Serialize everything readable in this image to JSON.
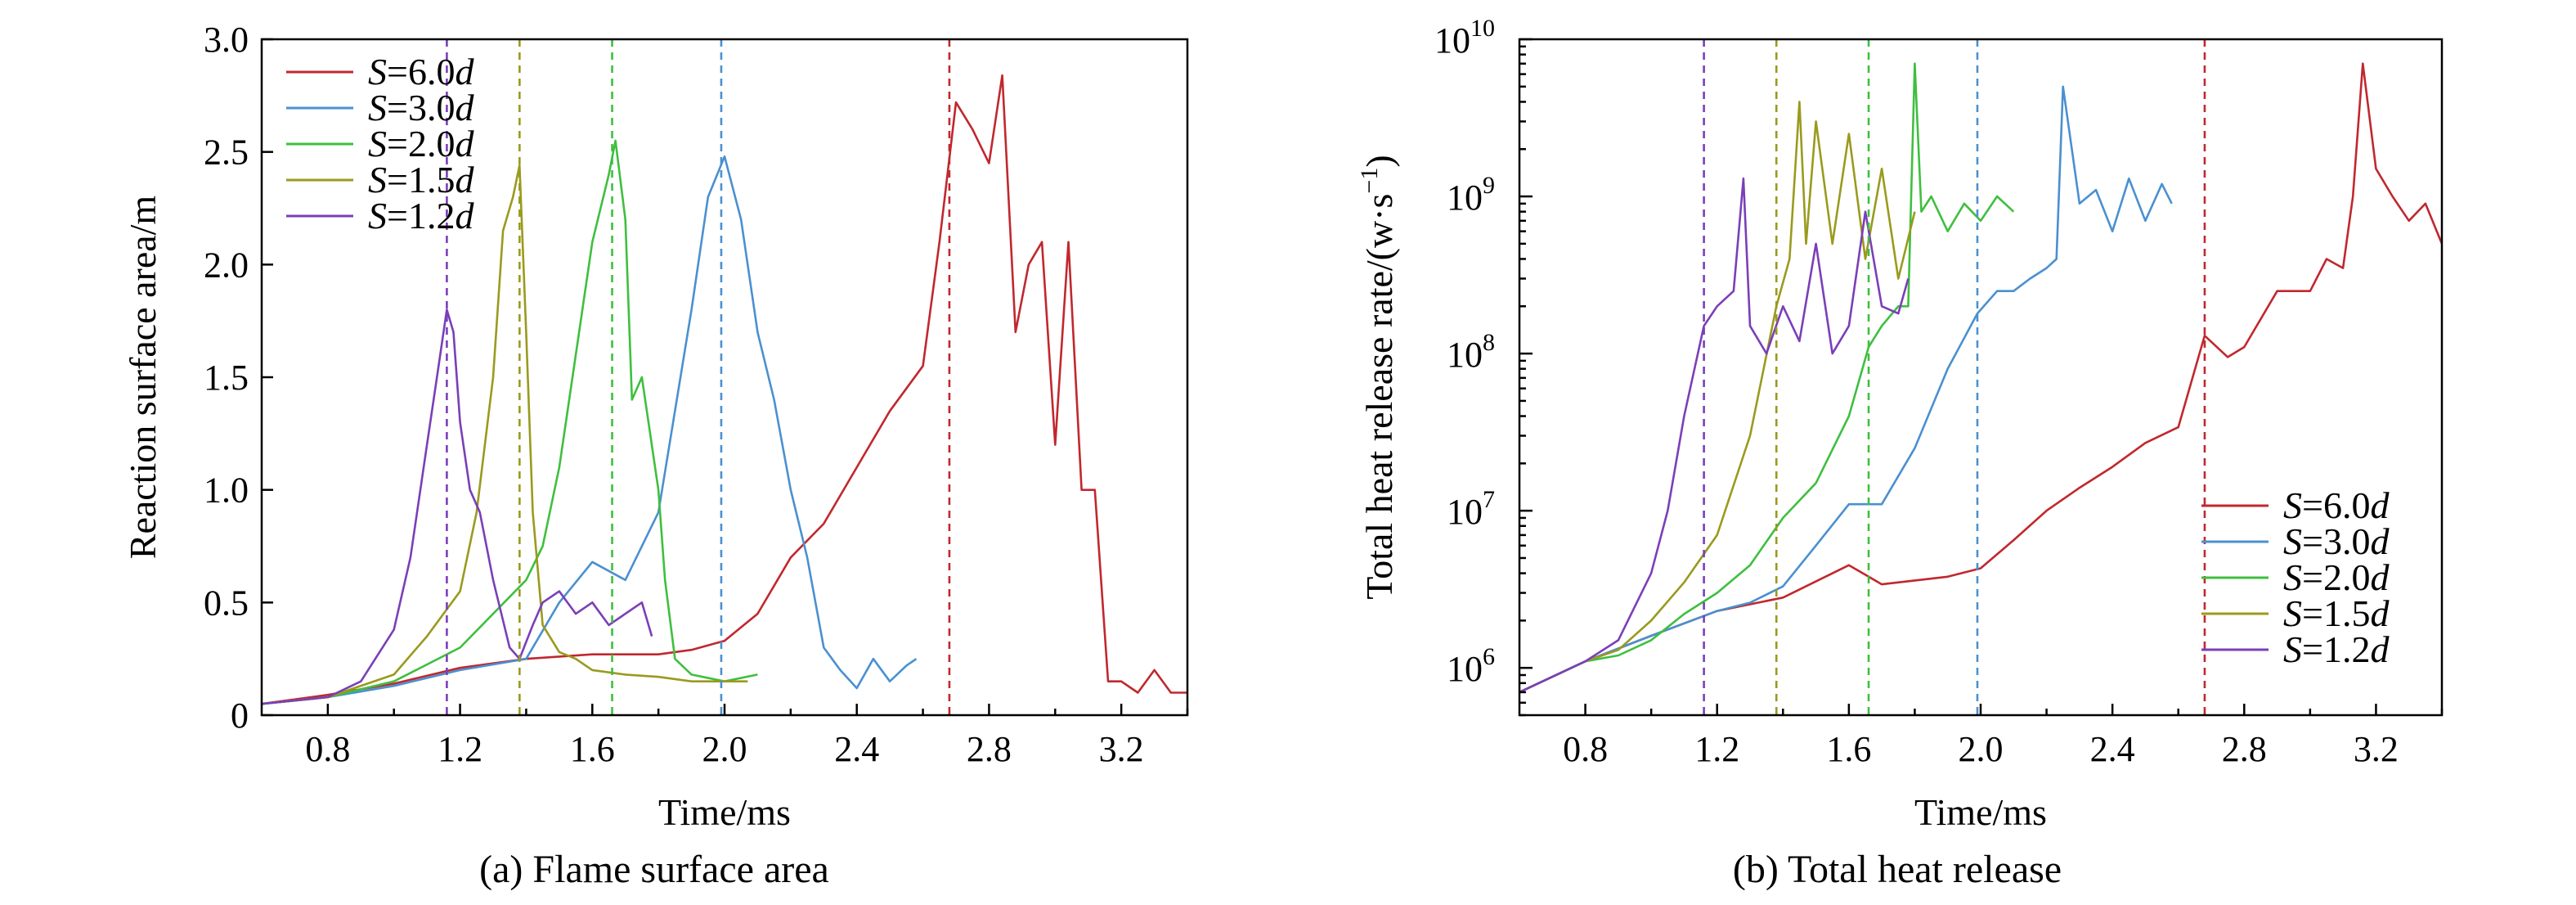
{
  "colors": {
    "S=6.0d": "#c0282e",
    "S=3.0d": "#4a90d0",
    "S=2.0d": "#3fbf3f",
    "S=1.5d": "#9a9a1e",
    "S=1.2d": "#7a3fb8"
  },
  "chart_data": [
    {
      "type": "line",
      "caption": "(a) Flame surface area",
      "xlabel": "Time/ms",
      "ylabel": "Reaction surface area/m",
      "xlim": [
        0.6,
        3.4
      ],
      "ylim": [
        0,
        3.0
      ],
      "xticks": [
        "0.8",
        "1.2",
        "1.6",
        "2.0",
        "2.4",
        "2.8",
        "3.2"
      ],
      "yticks": [
        "0",
        "0.5",
        "1.0",
        "1.5",
        "2.0",
        "2.5",
        "3.0"
      ],
      "legend_position": "top-left",
      "legend": [
        {
          "prefix": "S",
          "suffix": "=6.0",
          "unit": "d"
        },
        {
          "prefix": "S",
          "suffix": "=3.0",
          "unit": "d"
        },
        {
          "prefix": "S",
          "suffix": "=2.0",
          "unit": "d"
        },
        {
          "prefix": "S",
          "suffix": "=1.5",
          "unit": "d"
        },
        {
          "prefix": "S",
          "suffix": "=1.2",
          "unit": "d"
        }
      ],
      "markers": [
        {
          "series": "S=1.2d",
          "x": 1.16
        },
        {
          "series": "S=1.5d",
          "x": 1.38
        },
        {
          "series": "S=2.0d",
          "x": 1.66
        },
        {
          "series": "S=3.0d",
          "x": 1.99
        },
        {
          "series": "S=6.0d",
          "x": 2.68
        }
      ],
      "series": [
        {
          "name": "S=6.0d",
          "x": [
            0.6,
            0.8,
            1.0,
            1.2,
            1.4,
            1.6,
            1.8,
            1.9,
            2.0,
            2.1,
            2.2,
            2.3,
            2.4,
            2.5,
            2.6,
            2.65,
            2.7,
            2.75,
            2.8,
            2.84,
            2.88,
            2.92,
            2.96,
            3.0,
            3.04,
            3.08,
            3.12,
            3.16,
            3.2,
            3.25,
            3.3,
            3.35,
            3.4
          ],
          "y": [
            0.05,
            0.09,
            0.14,
            0.21,
            0.25,
            0.27,
            0.27,
            0.29,
            0.33,
            0.45,
            0.7,
            0.85,
            1.1,
            1.35,
            1.55,
            2.1,
            2.72,
            2.6,
            2.45,
            2.84,
            1.7,
            2.0,
            2.1,
            1.2,
            2.1,
            1.0,
            1.0,
            0.15,
            0.15,
            0.1,
            0.2,
            0.1,
            0.1
          ]
        },
        {
          "name": "S=3.0d",
          "x": [
            0.6,
            0.8,
            1.0,
            1.2,
            1.4,
            1.5,
            1.6,
            1.7,
            1.8,
            1.9,
            1.95,
            2.0,
            2.05,
            2.1,
            2.15,
            2.2,
            2.25,
            2.3,
            2.35,
            2.4,
            2.45,
            2.5,
            2.55,
            2.58
          ],
          "y": [
            0.05,
            0.08,
            0.13,
            0.2,
            0.25,
            0.5,
            0.68,
            0.6,
            0.9,
            1.8,
            2.3,
            2.48,
            2.2,
            1.7,
            1.4,
            1.0,
            0.7,
            0.3,
            0.2,
            0.12,
            0.25,
            0.15,
            0.22,
            0.25
          ]
        },
        {
          "name": "S=2.0d",
          "x": [
            0.6,
            0.8,
            1.0,
            1.2,
            1.4,
            1.45,
            1.5,
            1.55,
            1.6,
            1.65,
            1.67,
            1.7,
            1.72,
            1.75,
            1.8,
            1.82,
            1.85,
            1.9,
            2.0,
            2.1
          ],
          "y": [
            0.05,
            0.08,
            0.15,
            0.3,
            0.6,
            0.75,
            1.1,
            1.6,
            2.1,
            2.4,
            2.55,
            2.2,
            1.4,
            1.5,
            1.0,
            0.6,
            0.25,
            0.18,
            0.15,
            0.18
          ]
        },
        {
          "name": "S=1.5d",
          "x": [
            0.6,
            0.8,
            1.0,
            1.1,
            1.2,
            1.25,
            1.3,
            1.33,
            1.36,
            1.38,
            1.4,
            1.42,
            1.45,
            1.5,
            1.55,
            1.6,
            1.7,
            1.8,
            1.9,
            2.0,
            2.07
          ],
          "y": [
            0.05,
            0.08,
            0.18,
            0.35,
            0.55,
            0.9,
            1.5,
            2.15,
            2.3,
            2.44,
            1.7,
            0.9,
            0.4,
            0.28,
            0.25,
            0.2,
            0.18,
            0.17,
            0.15,
            0.15,
            0.15
          ]
        },
        {
          "name": "S=1.2d",
          "x": [
            0.6,
            0.8,
            0.9,
            1.0,
            1.05,
            1.1,
            1.13,
            1.16,
            1.18,
            1.2,
            1.23,
            1.26,
            1.3,
            1.35,
            1.38,
            1.42,
            1.45,
            1.5,
            1.55,
            1.6,
            1.65,
            1.7,
            1.75,
            1.78
          ],
          "y": [
            0.05,
            0.08,
            0.15,
            0.38,
            0.7,
            1.2,
            1.5,
            1.8,
            1.7,
            1.3,
            1.0,
            0.9,
            0.6,
            0.3,
            0.25,
            0.4,
            0.5,
            0.55,
            0.45,
            0.5,
            0.4,
            0.45,
            0.5,
            0.35
          ]
        }
      ]
    },
    {
      "type": "line",
      "caption": "(b) Total heat release",
      "xlabel": "Time/ms",
      "ylabel_text": "Total heat release rate/(w·s",
      "ylabel_sup": "−1",
      "ylabel_close": ")",
      "yscale": "log",
      "xlim": [
        0.6,
        3.4
      ],
      "ylim": [
        500000,
        10000000000
      ],
      "xticks": [
        "0.8",
        "1.2",
        "1.6",
        "2.0",
        "2.4",
        "2.8",
        "3.2"
      ],
      "yticks": [
        {
          "base": "10",
          "exp": "6"
        },
        {
          "base": "10",
          "exp": "7"
        },
        {
          "base": "10",
          "exp": "8"
        },
        {
          "base": "10",
          "exp": "9"
        },
        {
          "base": "10",
          "exp": "10"
        }
      ],
      "legend_position": "bottom-right",
      "legend": [
        {
          "prefix": "S",
          "suffix": "=6.0",
          "unit": "d"
        },
        {
          "prefix": "S",
          "suffix": "=3.0",
          "unit": "d"
        },
        {
          "prefix": "S",
          "suffix": "=2.0",
          "unit": "d"
        },
        {
          "prefix": "S",
          "suffix": "=1.5",
          "unit": "d"
        },
        {
          "prefix": "S",
          "suffix": "=1.2",
          "unit": "d"
        }
      ],
      "markers": [
        {
          "series": "S=1.2d",
          "x": 1.16
        },
        {
          "series": "S=1.5d",
          "x": 1.38
        },
        {
          "series": "S=2.0d",
          "x": 1.66
        },
        {
          "series": "S=3.0d",
          "x": 1.99
        },
        {
          "series": "S=6.0d",
          "x": 2.68
        }
      ],
      "series": [
        {
          "name": "S=6.0d",
          "x": [
            0.6,
            0.8,
            1.0,
            1.2,
            1.4,
            1.6,
            1.7,
            1.8,
            1.9,
            2.0,
            2.1,
            2.2,
            2.3,
            2.4,
            2.5,
            2.6,
            2.68,
            2.75,
            2.8,
            2.9,
            3.0,
            3.05,
            3.1,
            3.13,
            3.16,
            3.2,
            3.25,
            3.3,
            3.35,
            3.4
          ],
          "y": [
            700000,
            1100000,
            1600000,
            2300000,
            2800000,
            4500000,
            3400000,
            3600000,
            3800000,
            4300000,
            6500000,
            10000000,
            14000000,
            19000000,
            27000000,
            34000000,
            130000000,
            95000000,
            110000000,
            250000000,
            250000000,
            400000000,
            350000000,
            1000000000,
            7000000000,
            1500000000,
            1000000000,
            700000000,
            900000000,
            500000000
          ]
        },
        {
          "name": "S=3.0d",
          "x": [
            0.6,
            0.8,
            1.0,
            1.2,
            1.3,
            1.4,
            1.5,
            1.6,
            1.7,
            1.8,
            1.9,
            1.99,
            2.05,
            2.1,
            2.15,
            2.2,
            2.23,
            2.25,
            2.3,
            2.35,
            2.4,
            2.45,
            2.5,
            2.55,
            2.58
          ],
          "y": [
            700000,
            1100000,
            1600000,
            2300000,
            2600000,
            3300000,
            6000000,
            11000000,
            11000000,
            25000000,
            80000000,
            180000000,
            250000000,
            250000000,
            300000000,
            350000000,
            400000000,
            5000000000,
            900000000,
            1100000000,
            600000000,
            1300000000,
            700000000,
            1200000000,
            900000000
          ]
        },
        {
          "name": "S=2.0d",
          "x": [
            0.6,
            0.8,
            0.9,
            1.0,
            1.1,
            1.2,
            1.3,
            1.4,
            1.5,
            1.6,
            1.66,
            1.7,
            1.75,
            1.78,
            1.8,
            1.82,
            1.85,
            1.9,
            1.95,
            2.0,
            2.05,
            2.1
          ],
          "y": [
            700000,
            1100000,
            1200000,
            1500000,
            2200000,
            3000000,
            4500000,
            9000000,
            15000000,
            40000000,
            110000000,
            150000000,
            200000000,
            200000000,
            7000000000,
            800000000,
            1000000000,
            600000000,
            900000000,
            700000000,
            1000000000,
            800000000
          ]
        },
        {
          "name": "S=1.5d",
          "x": [
            0.6,
            0.8,
            0.9,
            1.0,
            1.1,
            1.2,
            1.3,
            1.38,
            1.42,
            1.45,
            1.47,
            1.5,
            1.55,
            1.6,
            1.65,
            1.7,
            1.75,
            1.8
          ],
          "y": [
            700000,
            1100000,
            1300000,
            2000000,
            3500000,
            7000000,
            30000000,
            200000000,
            400000000,
            4000000000,
            500000000,
            3000000000,
            500000000,
            2500000000,
            400000000,
            1500000000,
            300000000,
            800000000
          ]
        },
        {
          "name": "S=1.2d",
          "x": [
            0.6,
            0.8,
            0.9,
            1.0,
            1.05,
            1.1,
            1.16,
            1.2,
            1.25,
            1.28,
            1.3,
            1.35,
            1.4,
            1.45,
            1.5,
            1.55,
            1.6,
            1.65,
            1.7,
            1.75,
            1.78
          ],
          "y": [
            700000,
            1100000,
            1500000,
            4000000,
            10000000,
            40000000,
            150000000,
            200000000,
            250000000,
            1300000000,
            150000000,
            100000000,
            200000000,
            120000000,
            500000000,
            100000000,
            150000000,
            800000000,
            200000000,
            180000000,
            300000000
          ]
        }
      ]
    }
  ]
}
